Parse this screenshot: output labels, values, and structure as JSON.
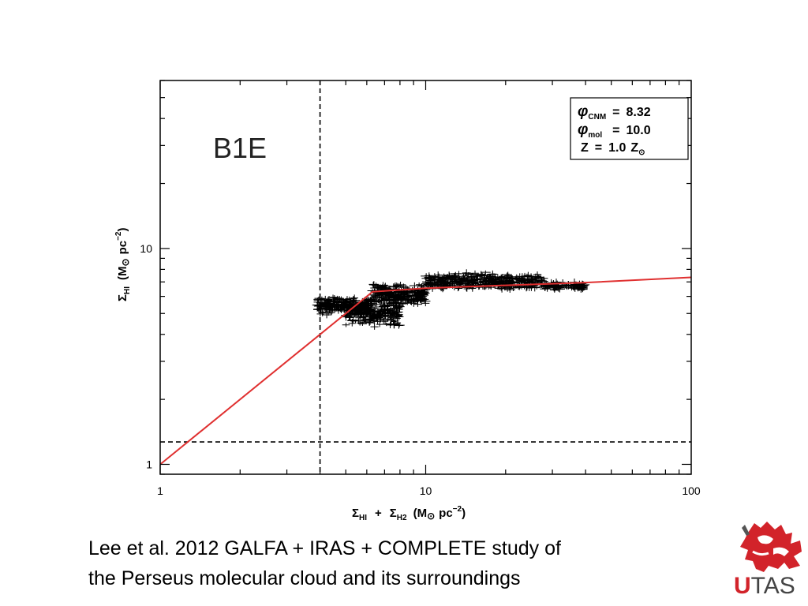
{
  "chart_data": {
    "type": "scatter",
    "scale": {
      "x": "log",
      "y": "log"
    },
    "xlim": [
      1,
      100
    ],
    "ylim": [
      0.9,
      60
    ],
    "x_ticks": [
      {
        "value": 1,
        "label": "1"
      },
      {
        "value": 10,
        "label": "10"
      },
      {
        "value": 100,
        "label": "100"
      }
    ],
    "y_ticks": [
      {
        "value": 1,
        "label": "1"
      },
      {
        "value": 10,
        "label": "10"
      }
    ],
    "xlabel": {
      "sym1": "Σ",
      "sub1": "HI",
      "plus": "+",
      "sym2": "Σ",
      "sub2": "H2",
      "units_a": "(M",
      "sun": "⊙",
      "units_b": "pc",
      "exp": "−2",
      "close": ")"
    },
    "ylabel": {
      "sym": "Σ",
      "sub": "HI",
      "units_a": "(M",
      "sun": "⊙",
      "units_b": "pc",
      "exp": "−2",
      "close": ")"
    },
    "panel_label": "B1E",
    "legend": {
      "line1": {
        "sym": "φ",
        "sub": "CNM",
        "eq": "=",
        "val": "8.32"
      },
      "line2": {
        "sym": "φ",
        "sub": "mol",
        "eq": "=",
        "val": "10.0"
      },
      "line3": {
        "sym": "Z",
        "eq": "=",
        "val": "1.0",
        "unit": "Z",
        "unit_sub": "⊙"
      }
    },
    "vertical_line_x": 4.0,
    "horizontal_line_y": 1.27,
    "model_line": [
      [
        1,
        1.0
      ],
      [
        6.3,
        6.3
      ],
      [
        10,
        6.55
      ],
      [
        20,
        6.75
      ],
      [
        40,
        6.95
      ],
      [
        100,
        7.35
      ]
    ],
    "scatter_clusters": [
      {
        "x": [
          3.9,
          6.3
        ],
        "y": [
          4.9,
          6.0
        ],
        "n": 260
      },
      {
        "x": [
          5.0,
          8.0
        ],
        "y": [
          4.3,
          5.8
        ],
        "n": 220
      },
      {
        "x": [
          6.3,
          10.0
        ],
        "y": [
          5.4,
          6.9
        ],
        "n": 260
      },
      {
        "x": [
          10.0,
          18.0
        ],
        "y": [
          6.4,
          7.8
        ],
        "n": 240
      },
      {
        "x": [
          18.0,
          28.0
        ],
        "y": [
          6.4,
          7.7
        ],
        "n": 160
      },
      {
        "x": [
          28.0,
          40.0
        ],
        "y": [
          6.4,
          7.0
        ],
        "n": 90
      }
    ],
    "colors": {
      "model": "#e03030",
      "points": "#000000",
      "axes": "#000000"
    }
  },
  "caption": {
    "line1": "Lee et al. 2012  GALFA + IRAS + COMPLETE study of",
    "line2": "the Perseus molecular cloud and its surroundings"
  },
  "logo": {
    "text_u": "U",
    "text_rest": "TAS",
    "color": "#d2232a"
  }
}
